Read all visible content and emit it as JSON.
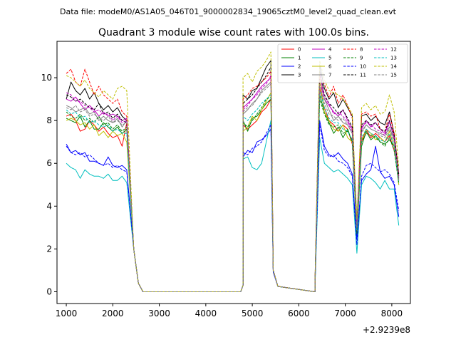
{
  "suptitle": "Data file: modeM0/AS1A05_046T01_9000002834_19065cztM0_level2_quad_clean.evt",
  "chart_data": {
    "type": "line",
    "title": "Quadrant 3 module wise count rates with 100.0s bins.",
    "xlabel": "",
    "ylabel": "",
    "offset_label": "+2.9239e8",
    "xlim": [
      800,
      8400
    ],
    "ylim": [
      -0.55,
      11.7
    ],
    "xticks": [
      1000,
      2000,
      3000,
      4000,
      5000,
      6000,
      7000,
      8000
    ],
    "xtick_labels": [
      "1000",
      "2000",
      "3000",
      "4000",
      "5000",
      "6000",
      "7000",
      "8000"
    ],
    "yticks": [
      0,
      2,
      4,
      6,
      8,
      10
    ],
    "ytick_labels": [
      "0",
      "2",
      "4",
      "6",
      "8",
      "10"
    ],
    "grid": false,
    "legend_position": "upper-right",
    "segments": [
      {
        "start": 1000,
        "step": 100,
        "n": 14
      },
      {
        "x": [
          2450,
          2550,
          2650
        ],
        "edge_values": [
          2,
          0.4,
          0
        ]
      },
      {
        "start": 2650,
        "end": 4750,
        "value": 0
      },
      {
        "x": [
          4750,
          4800
        ],
        "edge_values": [
          0,
          0.3
        ]
      },
      {
        "start": 4800,
        "step": 100,
        "n": 7
      },
      {
        "x": [
          5450,
          5550
        ],
        "edge_values": [
          1,
          0.25
        ]
      },
      {
        "start": 5550,
        "end": 6350,
        "value": 0
      },
      {
        "start": 6350,
        "step": 100,
        "n": 19
      }
    ],
    "series": [
      {
        "name": "0",
        "color": "#ff0000",
        "dash": "solid",
        "seg1": [
          8.2,
          8.3,
          8.0,
          7.5,
          7.6,
          8.0,
          7.8,
          7.5,
          7.7,
          7.4,
          7.2,
          7.3,
          6.8,
          7.9
        ],
        "seg2": [
          7.8,
          7.6,
          7.8,
          8.0,
          8.4,
          8.6,
          9.0
        ],
        "seg3": [
          0.5,
          9.5,
          8.6,
          8.0,
          7.8,
          7.5,
          7.8,
          7.6,
          6.9,
          3.0,
          7.0,
          7.6,
          7.2,
          7.4,
          7.2,
          7.0,
          7.3,
          6.6,
          5.3
        ]
      },
      {
        "name": "1",
        "color": "#008000",
        "dash": "solid",
        "seg1": [
          8.1,
          8.0,
          7.9,
          8.2,
          7.7,
          8.0,
          7.6,
          7.6,
          7.9,
          7.7,
          7.5,
          7.7,
          7.4,
          7.6
        ],
        "seg2": [
          8.0,
          7.5,
          8.1,
          8.2,
          8.5,
          8.8,
          9.0
        ],
        "seg3": [
          0.5,
          9.2,
          8.4,
          7.9,
          7.4,
          7.7,
          7.2,
          7.6,
          7.0,
          2.6,
          6.8,
          7.5,
          7.1,
          7.3,
          7.0,
          6.9,
          7.1,
          6.8,
          5.0
        ]
      },
      {
        "name": "2",
        "color": "#0000ff",
        "dash": "solid",
        "seg1": [
          6.9,
          6.5,
          6.6,
          6.4,
          6.5,
          6.1,
          6.1,
          6.0,
          5.9,
          6.3,
          5.9,
          5.8,
          5.9,
          5.7
        ],
        "seg2": [
          6.3,
          6.6,
          6.5,
          7.0,
          7.1,
          7.3,
          7.6
        ],
        "seg3": [
          0.4,
          8.0,
          6.8,
          6.4,
          6.3,
          6.5,
          6.2,
          6.0,
          5.5,
          2.4,
          5.2,
          5.5,
          5.7,
          6.8,
          5.6,
          5.3,
          5.4,
          5.0,
          3.5
        ]
      },
      {
        "name": "3",
        "color": "#000000",
        "dash": "solid",
        "seg1": [
          9.0,
          9.8,
          9.4,
          9.2,
          9.5,
          9.0,
          9.3,
          8.8,
          8.5,
          8.7,
          8.4,
          8.6,
          8.2,
          8.0
        ],
        "seg2": [
          9.2,
          9.0,
          9.4,
          9.5,
          10.0,
          10.5,
          10.8
        ],
        "seg3": [
          0.6,
          10.6,
          9.5,
          9.0,
          9.3,
          8.6,
          9.0,
          8.6,
          8.2,
          3.1,
          8.2,
          8.3,
          8.0,
          8.2,
          7.9,
          7.8,
          8.4,
          7.4,
          5.5
        ]
      },
      {
        "name": "4",
        "color": "#bf00bf",
        "dash": "solid",
        "seg1": [
          9.0,
          8.9,
          9.1,
          8.8,
          8.5,
          8.7,
          8.5,
          8.2,
          8.4,
          8.2,
          8.3,
          8.2,
          8.0,
          8.1
        ],
        "seg2": [
          8.6,
          8.8,
          9.0,
          9.3,
          9.6,
          9.8,
          10.0
        ],
        "seg3": [
          0.5,
          9.9,
          9.0,
          8.7,
          8.4,
          8.2,
          8.5,
          8.0,
          7.6,
          3.1,
          7.6,
          8.0,
          7.7,
          7.9,
          7.6,
          7.4,
          8.0,
          7.2,
          5.2
        ]
      },
      {
        "name": "5",
        "color": "#00bfbf",
        "dash": "solid",
        "seg1": [
          6.0,
          5.8,
          5.7,
          5.3,
          5.7,
          5.5,
          5.4,
          5.4,
          5.3,
          5.5,
          5.2,
          5.2,
          5.4,
          5.1
        ],
        "seg2": [
          6.2,
          6.3,
          5.8,
          5.7,
          6.0,
          7.0,
          8.0
        ],
        "seg3": [
          0.3,
          7.2,
          6.0,
          5.8,
          5.6,
          5.7,
          5.5,
          5.3,
          5.0,
          1.8,
          5.0,
          5.4,
          5.3,
          5.1,
          4.8,
          5.2,
          4.8,
          4.8,
          3.1
        ]
      },
      {
        "name": "6",
        "color": "#bfbf00",
        "dash": "solid",
        "seg1": [
          8.0,
          8.1,
          8.0,
          7.8,
          7.9,
          7.6,
          7.8,
          7.3,
          7.5,
          7.2,
          7.5,
          7.3,
          7.4,
          7.0
        ],
        "seg2": [
          7.5,
          7.7,
          8.2,
          8.0,
          8.5,
          8.9,
          9.3
        ],
        "seg3": [
          0.5,
          10.0,
          8.4,
          8.0,
          7.6,
          7.5,
          7.8,
          7.2,
          7.0,
          2.8,
          7.1,
          7.6,
          7.4,
          7.1,
          7.2,
          7.0,
          7.5,
          6.8,
          5.0
        ]
      },
      {
        "name": "7",
        "color": "#808080",
        "dash": "solid",
        "seg1": [
          8.7,
          8.6,
          8.4,
          8.5,
          8.6,
          8.3,
          8.4,
          8.0,
          8.2,
          8.0,
          7.9,
          8.1,
          7.7,
          8.0
        ],
        "seg2": [
          8.3,
          8.5,
          8.8,
          9.0,
          9.4,
          9.6,
          9.8
        ],
        "seg3": [
          0.5,
          10.4,
          9.0,
          8.5,
          8.0,
          8.2,
          7.9,
          7.8,
          7.4,
          3.0,
          7.5,
          7.8,
          7.6,
          7.5,
          7.4,
          7.3,
          7.7,
          7.1,
          5.3
        ]
      },
      {
        "name": "8",
        "color": "#ff0000",
        "dash": "dashed",
        "seg1": [
          10.2,
          10.4,
          9.8,
          9.6,
          10.4,
          9.8,
          9.2,
          9.6,
          9.2,
          9.0,
          8.8,
          9.0,
          8.4,
          8.2
        ],
        "seg2": [
          9.0,
          9.2,
          9.5,
          9.6,
          9.8,
          10.0,
          10.3
        ],
        "seg3": [
          0.6,
          10.0,
          9.7,
          9.1,
          9.6,
          8.8,
          9.2,
          8.7,
          8.1,
          3.1,
          8.3,
          8.4,
          8.2,
          8.3,
          7.6,
          7.5,
          8.3,
          7.4,
          5.4
        ]
      },
      {
        "name": "9",
        "color": "#008000",
        "dash": "dashed",
        "seg1": [
          8.4,
          8.2,
          8.1,
          8.3,
          8.0,
          8.1,
          7.9,
          8.2,
          7.8,
          7.9,
          7.6,
          7.8,
          7.5,
          7.7
        ],
        "seg2": [
          7.9,
          7.7,
          8.0,
          8.3,
          8.6,
          9.0,
          9.1
        ],
        "seg3": [
          0.5,
          9.0,
          8.3,
          7.8,
          7.7,
          7.8,
          7.4,
          7.5,
          7.1,
          2.7,
          7.0,
          7.4,
          7.3,
          7.2,
          7.0,
          6.8,
          7.2,
          6.6,
          5.1
        ]
      },
      {
        "name": "10",
        "color": "#0000ff",
        "dash": "dashed",
        "seg1": [
          6.8,
          6.5,
          6.4,
          6.5,
          6.3,
          6.4,
          6.2,
          6.0,
          5.9,
          6.0,
          5.8,
          5.9,
          5.7,
          5.6
        ],
        "seg2": [
          6.5,
          6.4,
          6.7,
          6.8,
          7.0,
          7.4,
          7.8
        ],
        "seg3": [
          0.4,
          7.8,
          6.6,
          6.3,
          6.4,
          6.1,
          6.0,
          5.8,
          5.4,
          2.2,
          5.4,
          5.9,
          6.0,
          5.8,
          5.6,
          5.7,
          5.5,
          5.1,
          3.8
        ]
      },
      {
        "name": "11",
        "color": "#000000",
        "dash": "dashed",
        "seg1": [
          9.2,
          9.1,
          8.9,
          9.0,
          8.8,
          8.6,
          8.5,
          8.8,
          8.3,
          8.4,
          8.1,
          8.3,
          8.0,
          7.9
        ],
        "seg2": [
          8.8,
          9.0,
          9.2,
          9.5,
          9.8,
          10.1,
          10.5
        ],
        "seg3": [
          0.5,
          10.3,
          9.2,
          8.8,
          8.6,
          8.3,
          8.5,
          8.1,
          7.7,
          3.2,
          7.8,
          8.0,
          7.8,
          7.9,
          7.6,
          7.5,
          8.0,
          7.3,
          5.4
        ]
      },
      {
        "name": "12",
        "color": "#bf00bf",
        "dash": "dashed",
        "seg1": [
          9.3,
          9.2,
          8.9,
          8.9,
          8.7,
          8.6,
          8.4,
          8.5,
          8.3,
          8.3,
          8.0,
          8.2,
          7.9,
          8.0
        ],
        "seg2": [
          8.5,
          8.7,
          9.0,
          9.2,
          9.5,
          9.7,
          10.1
        ],
        "seg3": [
          0.5,
          10.2,
          9.1,
          8.8,
          8.3,
          8.4,
          8.2,
          7.9,
          7.5,
          3.0,
          7.7,
          7.9,
          7.8,
          7.6,
          7.5,
          7.3,
          7.9,
          7.2,
          5.3
        ]
      },
      {
        "name": "13",
        "color": "#00bfbf",
        "dash": "dashed",
        "seg1": [
          8.5,
          8.3,
          8.4,
          8.1,
          8.2,
          7.9,
          8.0,
          7.8,
          7.7,
          7.8,
          7.5,
          7.6,
          7.4,
          7.4
        ],
        "seg2": [
          8.2,
          8.0,
          8.3,
          8.5,
          8.8,
          9.0,
          9.2
        ],
        "seg3": [
          0.5,
          9.4,
          8.6,
          8.1,
          7.9,
          7.9,
          7.6,
          7.5,
          7.1,
          2.9,
          7.2,
          7.6,
          7.4,
          7.3,
          7.1,
          7.0,
          7.4,
          6.8,
          5.1
        ]
      },
      {
        "name": "14",
        "color": "#bfbf00",
        "dash": "dashed",
        "seg1": [
          10.1,
          10.0,
          9.8,
          9.6,
          9.9,
          9.5,
          9.3,
          9.1,
          9.4,
          9.2,
          9.0,
          9.5,
          9.6,
          9.4
        ],
        "seg2": [
          10.0,
          10.2,
          9.8,
          10.3,
          10.5,
          10.8,
          11.2
        ],
        "seg3": [
          0.7,
          10.8,
          9.9,
          9.4,
          9.3,
          9.2,
          9.0,
          8.7,
          8.3,
          3.4,
          8.6,
          8.8,
          8.5,
          8.7,
          8.3,
          8.4,
          9.2,
          8.4,
          5.8
        ]
      },
      {
        "name": "15",
        "color": "#808080",
        "dash": "dashed",
        "seg1": [
          8.6,
          8.5,
          8.7,
          8.4,
          8.5,
          8.2,
          8.3,
          8.1,
          8.0,
          8.2,
          7.9,
          8.0,
          7.8,
          7.9
        ],
        "seg2": [
          8.4,
          8.6,
          8.7,
          9.0,
          9.3,
          9.5,
          9.7
        ],
        "seg3": [
          0.5,
          9.7,
          8.8,
          8.3,
          8.2,
          8.0,
          8.1,
          7.8,
          7.4,
          3.0,
          7.4,
          7.8,
          7.6,
          7.5,
          7.3,
          7.2,
          7.6,
          7.0,
          5.2
        ]
      }
    ]
  }
}
